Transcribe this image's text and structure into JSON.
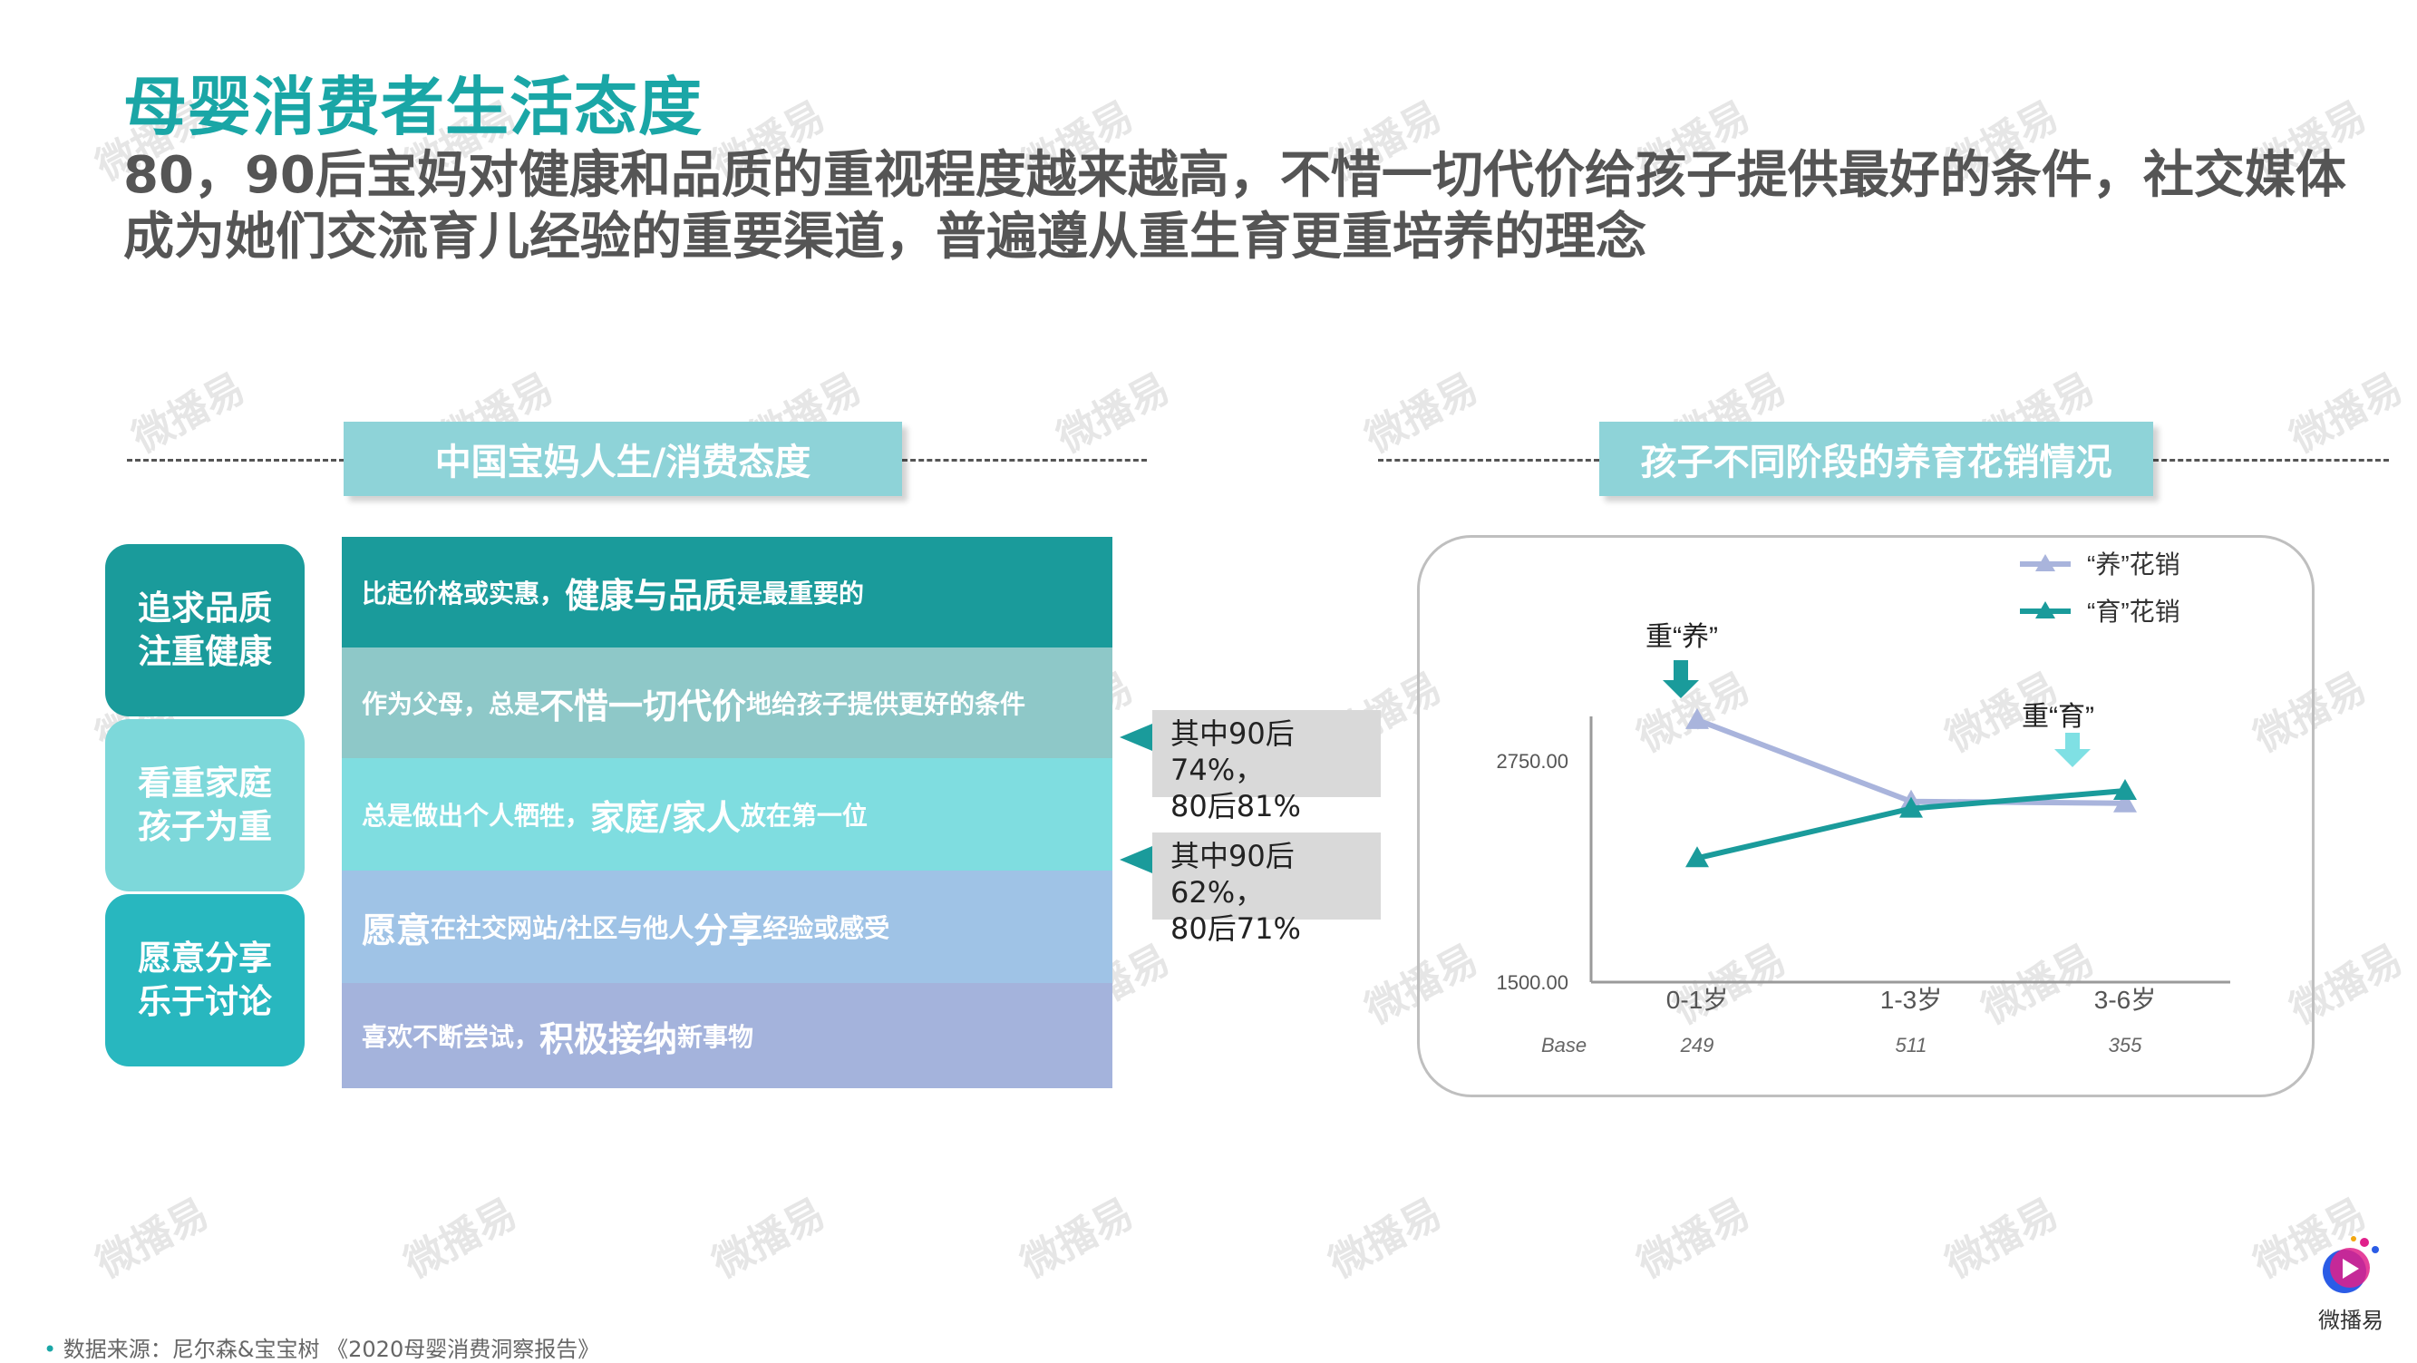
{
  "title": "母婴消费者生活态度",
  "subtitle": "80，90后宝妈对健康和品质的重视程度越来越高，不惜一切代价给孩子提供最好的条件，社交媒体成为她们交流育儿经验的重要渠道，普遍遵从重生育更重培养的理念",
  "left_panel": {
    "header": "中国宝妈人生/消费态度",
    "categories": [
      {
        "line1": "追求品质",
        "line2": "注重健康",
        "color": "#1a9b9b"
      },
      {
        "line1": "看重家庭",
        "line2": "孩子为重",
        "color": "#7dd8da"
      },
      {
        "line1": "愿意分享",
        "line2": "乐于讨论",
        "color": "#28b7bf"
      }
    ],
    "rows": [
      {
        "pre": "比起价格或实惠，",
        "bold": "健康与品质",
        "post": "是最重要的",
        "color": "#1a9b9b"
      },
      {
        "pre": "作为父母，总是",
        "bold": "不惜一切代价",
        "post": "地给孩子提供更好的条件",
        "color": "#8ec8c8"
      },
      {
        "pre": "总是做出个人牺牲，",
        "bold": "家庭/家人",
        "post": "放在第一位",
        "color": "#7fdde0"
      },
      {
        "pre": "",
        "bold": "愿意",
        "mid": "在社交网站/社区与他人",
        "bold2": "分享",
        "post": "经验或感受",
        "color": "#9fc3e6"
      },
      {
        "pre": "喜欢不断尝试，",
        "bold": "积极接纳",
        "post": "新事物",
        "color": "#a4b3dc"
      }
    ],
    "callouts": [
      {
        "line1": "其中90后74%，",
        "line2": "80后81%"
      },
      {
        "line1": "其中90后62%，",
        "line2": "80后71%"
      }
    ]
  },
  "right_panel": {
    "header": "孩子不同阶段的养育花销情况",
    "annotations": {
      "yang": "重“养”",
      "yu": "重“育”"
    },
    "base_label": "Base"
  },
  "chart_data": {
    "type": "line",
    "categories": [
      "0-1岁",
      "1-3岁",
      "3-6岁"
    ],
    "base": [
      "249",
      "511",
      "355"
    ],
    "yticks": [
      "2750.00",
      "1500.00"
    ],
    "ylim": [
      1500,
      3000
    ],
    "series": [
      {
        "name": "“养”花销",
        "values": [
          2980,
          2520,
          2510
        ],
        "color": "#a9b4dc",
        "marker": "triangle"
      },
      {
        "name": "“育”花销",
        "values": [
          2200,
          2480,
          2580
        ],
        "color": "#1a9b9b",
        "marker": "triangle"
      }
    ],
    "legend": "top-right",
    "grid": false
  },
  "source": "数据来源：尼尔森&宝宝树 《2020母婴消费洞察报告》",
  "logo_text": "微播易",
  "watermark": "微播易",
  "colors": {
    "accent": "#1aa6a6",
    "dark_teal": "#1a9b9b",
    "gray_text": "#555555"
  }
}
